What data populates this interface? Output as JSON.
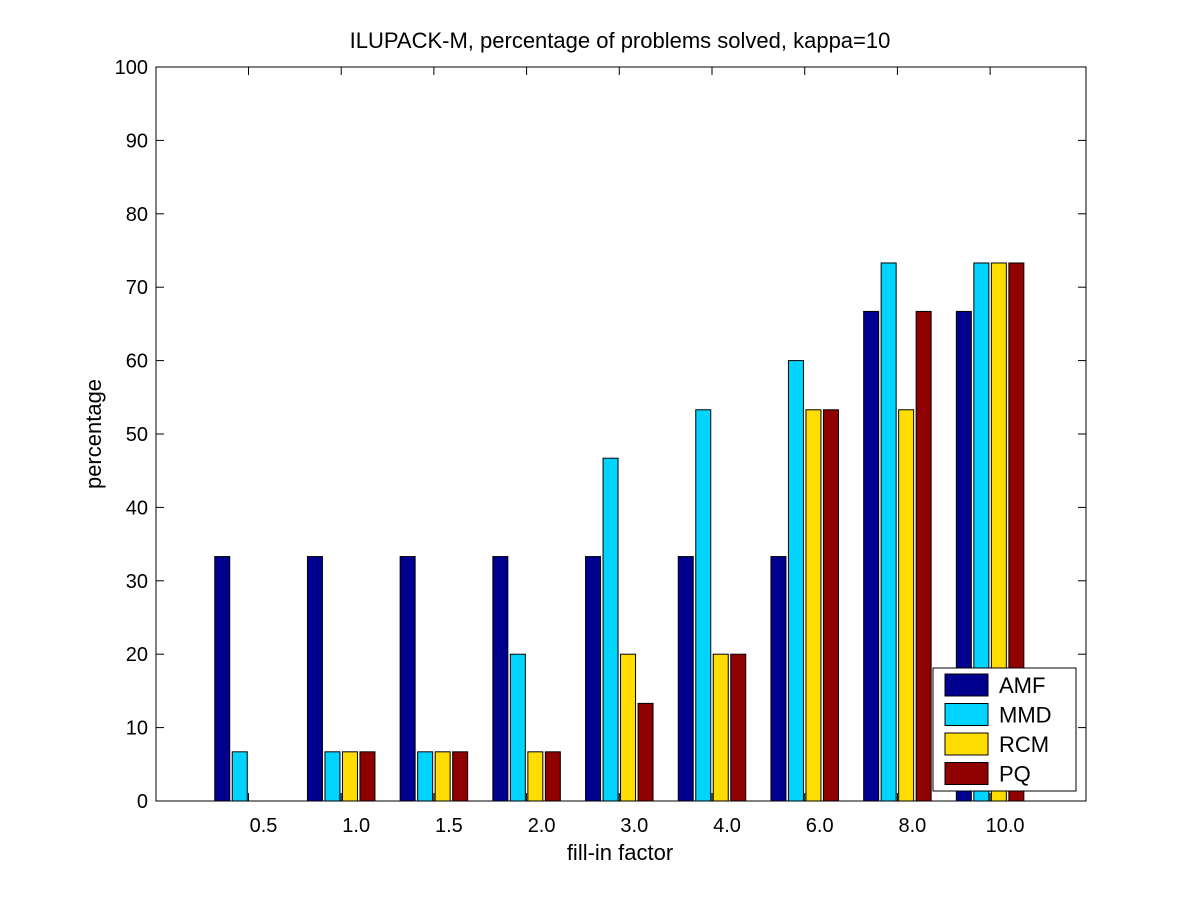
{
  "chart_data": {
    "type": "bar",
    "title": "ILUPACK-M, percentage of problems solved, kappa=10",
    "xlabel": "fill-in factor",
    "ylabel": "percentage",
    "categories": [
      "0.5",
      "1.0",
      "1.5",
      "2.0",
      "3.0",
      "4.0",
      "6.0",
      "8.0",
      "10.0"
    ],
    "ylim": [
      0,
      100
    ],
    "yticks": [
      0,
      10,
      20,
      30,
      40,
      50,
      60,
      70,
      80,
      90,
      100
    ],
    "grid": false,
    "legend_position": "bottom-right",
    "series": [
      {
        "name": "AMF",
        "color": "#00008f",
        "values": [
          33.3,
          33.3,
          33.3,
          33.3,
          33.3,
          33.3,
          33.3,
          66.7,
          66.7
        ]
      },
      {
        "name": "MMD",
        "color": "#00d4ff",
        "values": [
          6.7,
          6.7,
          6.7,
          20.0,
          46.7,
          53.3,
          60.0,
          73.3,
          73.3
        ]
      },
      {
        "name": "RCM",
        "color": "#ffdd00",
        "values": [
          0,
          6.7,
          6.7,
          6.7,
          20.0,
          20.0,
          53.3,
          53.3,
          73.3
        ]
      },
      {
        "name": "PQ",
        "color": "#8f0000",
        "values": [
          0,
          6.7,
          6.7,
          6.7,
          13.3,
          20.0,
          53.3,
          66.7,
          73.3
        ]
      }
    ]
  }
}
